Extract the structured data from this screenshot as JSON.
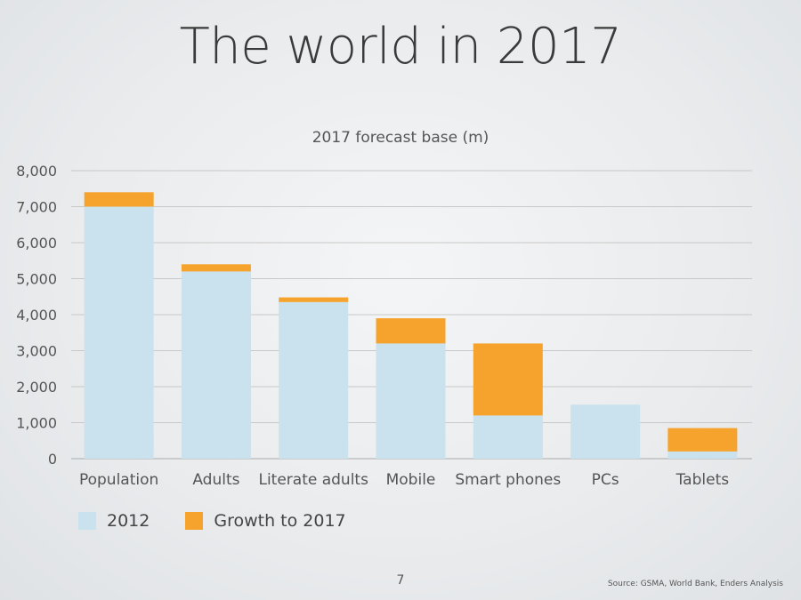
{
  "slide": {
    "title": "The world in 2017",
    "page_number": "7",
    "source": "Source: GSMA, World Bank, Enders Analysis"
  },
  "colors": {
    "base": "#c9e2ee",
    "growth": "#f6a32d",
    "grid": "#c8c8c8",
    "axis_text": "#555555"
  },
  "chart_data": {
    "type": "bar",
    "stacked": true,
    "title": "2017 forecast base (m)",
    "categories": [
      "Population",
      "Adults",
      "Literate adults",
      "Mobile",
      "Smart phones",
      "PCs",
      "Tablets"
    ],
    "series": [
      {
        "name": "2012",
        "color": "#c9e2ee",
        "values": [
          7000,
          5200,
          4350,
          3200,
          1200,
          1500,
          200
        ]
      },
      {
        "name": "Growth to 2017",
        "color": "#f6a32d",
        "values": [
          400,
          200,
          130,
          700,
          2000,
          0,
          650
        ]
      }
    ],
    "ylim": [
      0,
      8000
    ],
    "yticks": [
      0,
      1000,
      2000,
      3000,
      4000,
      5000,
      6000,
      7000,
      8000
    ],
    "ytick_labels": [
      "0",
      "1,000",
      "2,000",
      "3,000",
      "4,000",
      "5,000",
      "6,000",
      "7,000",
      "8,000"
    ],
    "grid": true,
    "legend_position": "bottom-left"
  }
}
